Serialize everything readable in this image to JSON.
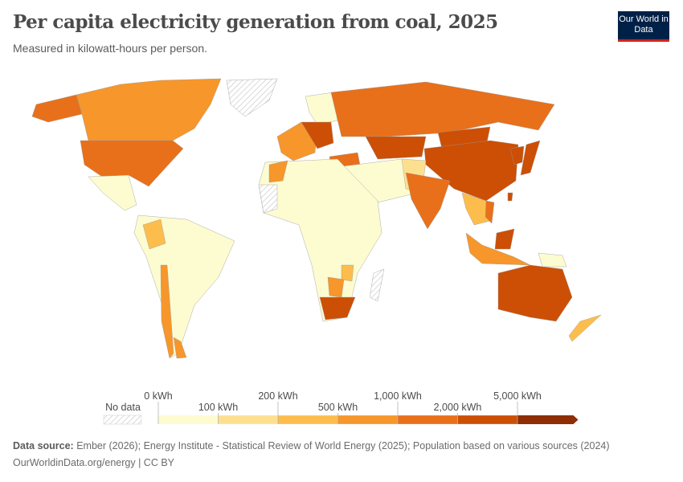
{
  "header": {
    "title": "Per capita electricity generation from coal, 2025",
    "subtitle": "Measured in kilowatt-hours per person.",
    "logo": "Our World in Data"
  },
  "legend": {
    "no_data_label": "No data",
    "bins": [
      {
        "from": "0 kWh",
        "to": "100 kWh",
        "color": "#fdfbd0"
      },
      {
        "from": "100 kWh",
        "to": "200 kWh",
        "color": "#fde08f"
      },
      {
        "from": "200 kWh",
        "to": "500 kWh",
        "color": "#fdbd4d"
      },
      {
        "from": "500 kWh",
        "to": "1,000 kWh",
        "color": "#f7962a"
      },
      {
        "from": "1,000 kWh",
        "to": "2,000 kWh",
        "color": "#e8701a"
      },
      {
        "from": "2,000 kWh",
        "to": "5,000 kWh",
        "color": "#cc4f05"
      },
      {
        "from": "5,000 kWh",
        "to": "",
        "color": "#8e2e05"
      }
    ],
    "tick_labels": [
      "0 kWh",
      "100 kWh",
      "200 kWh",
      "500 kWh",
      "1,000 kWh",
      "2,000 kWh",
      "5,000 kWh"
    ]
  },
  "map_regions": {
    "alaska": 4,
    "canada": 3,
    "usa": 4,
    "greenland": -1,
    "mexico": 0,
    "south-america": 0,
    "colombia": 2,
    "chile": 3,
    "argentina": 3,
    "western-europe": 3,
    "scandinavia": 0,
    "eastern-europe": 5,
    "turkey": 4,
    "russia": 4,
    "kazakhstan": 5,
    "mongolia": 5,
    "china": 5,
    "middle-east": 0,
    "central-asia": 1,
    "india": 4,
    "southeast-asia": 2,
    "vietnam": 4,
    "malaysia": 5,
    "indonesia": 3,
    "japan": 5,
    "korea": 5,
    "taiwan": 5,
    "africa": 0,
    "morocco": 3,
    "zimbabwe": 2,
    "botswana": 3,
    "south-africa": 5,
    "western-sahara": -1,
    "madagascar": -1,
    "australia": 5,
    "new-zealand": 2,
    "papua": 0
  },
  "footer": {
    "source_label": "Data source:",
    "source": "Ember (2026); Energy Institute - Statistical Review of World Energy (2025); Population based on various sources (2024)",
    "url": "OurWorldinData.org/energy | CC BY"
  }
}
